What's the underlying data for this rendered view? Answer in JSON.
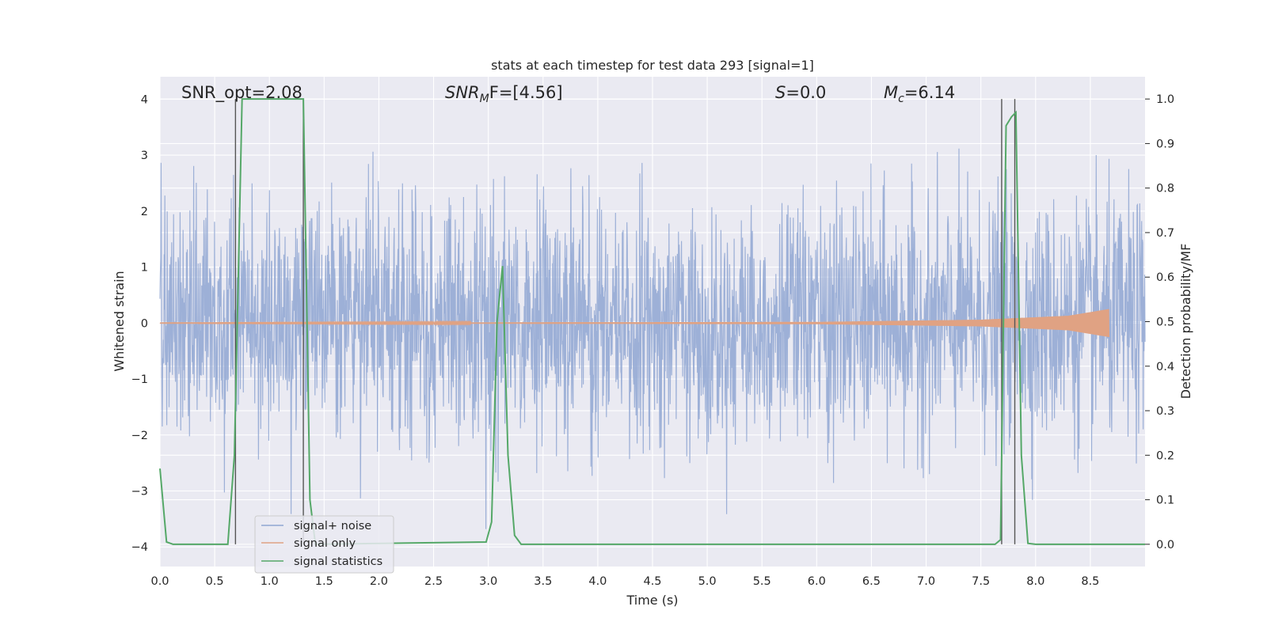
{
  "chart_data": {
    "type": "line",
    "title": "stats at each timestep for test data 293 [signal=1]",
    "xlabel": "Time (s)",
    "ylabel": "Whitened strain",
    "y2label": "Detection probability/MF",
    "xlim": [
      0.0,
      9.0
    ],
    "ylim": [
      -4.35,
      4.4
    ],
    "y2lim": [
      -0.05,
      1.05
    ],
    "xticks": [
      "0.0",
      "0.5",
      "1.0",
      "1.5",
      "2.0",
      "2.5",
      "3.0",
      "3.5",
      "4.0",
      "4.5",
      "5.0",
      "5.5",
      "6.0",
      "6.5",
      "7.0",
      "7.5",
      "8.0",
      "8.5"
    ],
    "yticks": [
      "4",
      "3",
      "2",
      "1",
      "0",
      "−1",
      "−2",
      "−3",
      "−4"
    ],
    "y2ticks": [
      "1.0",
      "0.9",
      "0.8",
      "0.7",
      "0.6",
      "0.5",
      "0.4",
      "0.3",
      "0.2",
      "0.1",
      "0.0"
    ],
    "grid": true,
    "legend_location": "lower-left",
    "annotations": {
      "snr_opt": "SNR_opt=2.08",
      "snr_mf_base": "SNR",
      "snr_mf_sub": "M",
      "snr_mf_rest": "F=[4.56]",
      "s_base": "S",
      "s_rest": "=0.0",
      "mc_base": "M",
      "mc_sub": "c",
      "mc_rest": "=6.14"
    },
    "series": [
      {
        "name": "signal+ noise",
        "color": "#8fa6d2",
        "description_of_values": "whitened strain noise, amplitude mostly within ±2, peaks up to about ±4",
        "t_range": [
          0.0,
          9.0
        ]
      },
      {
        "name": "signal only",
        "color": "#e0a283",
        "t_range": [
          0.0,
          8.67
        ],
        "envelope_amp": [
          [
            0.0,
            0.003
          ],
          [
            6.0,
            0.02
          ],
          [
            7.5,
            0.06
          ],
          [
            8.3,
            0.13
          ],
          [
            8.67,
            0.25
          ]
        ]
      },
      {
        "name": "signal statistics",
        "color": "#55a868",
        "axis": "right",
        "x": [
          0.0,
          0.06,
          0.12,
          0.62,
          0.68,
          0.72,
          0.75,
          1.0,
          1.31,
          1.37,
          1.42,
          2.98,
          3.03,
          3.08,
          3.13,
          3.18,
          3.24,
          3.3,
          7.63,
          7.68,
          7.73,
          7.78,
          7.82,
          7.87,
          7.93,
          8.0,
          9.0
        ],
        "values": [
          0.17,
          0.005,
          0.0,
          0.0,
          0.2,
          0.65,
          1.0,
          1.0,
          1.0,
          0.1,
          0.0,
          0.005,
          0.05,
          0.5,
          0.625,
          0.2,
          0.02,
          0.0,
          0.0,
          0.01,
          0.94,
          0.96,
          0.97,
          0.2,
          0.002,
          0.0,
          0.0
        ]
      }
    ],
    "vertical_lines_s": [
      0.69,
      1.31,
      7.69,
      7.81
    ]
  },
  "legend": [
    {
      "label": "signal+ noise",
      "color": "#8fa6d2"
    },
    {
      "label": "signal only",
      "color": "#e0a283"
    },
    {
      "label": "signal statistics",
      "color": "#55a868"
    }
  ]
}
